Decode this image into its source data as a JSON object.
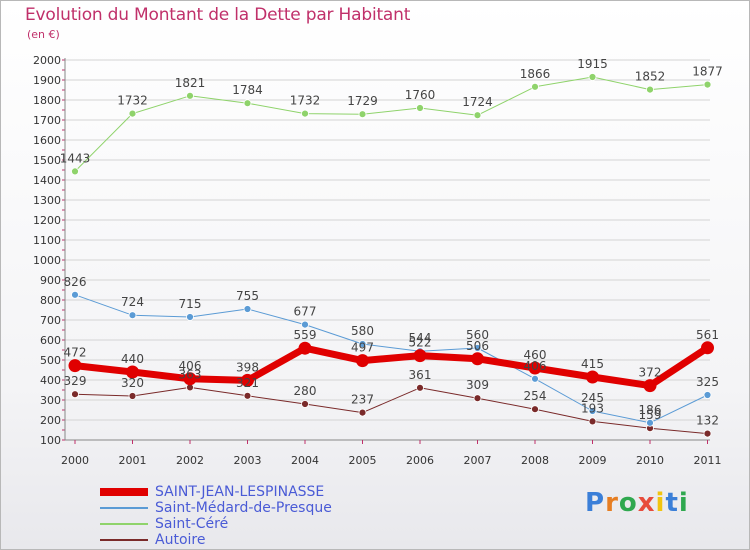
{
  "title": "Evolution du Montant de la Dette par Habitant",
  "subtitle": "(en €)",
  "logo": "Proxiti",
  "chart_data": {
    "type": "line",
    "x": [
      "2000",
      "2001",
      "2002",
      "2003",
      "2004",
      "2005",
      "2006",
      "2007",
      "2008",
      "2009",
      "2010",
      "2011"
    ],
    "ylim": [
      100,
      2000
    ],
    "yticks": [
      100,
      200,
      300,
      400,
      500,
      600,
      700,
      800,
      900,
      1000,
      1100,
      1200,
      1300,
      1400,
      1500,
      1600,
      1700,
      1800,
      1900,
      2000
    ],
    "grid": true,
    "legend_position": "bottom-left",
    "series": [
      {
        "name": "SAINT-JEAN-LESPINASSE",
        "color": "#e00000",
        "width": 7,
        "values": [
          472,
          440,
          406,
          398,
          559,
          497,
          522,
          506,
          460,
          415,
          372,
          561
        ],
        "labels": [
          "472",
          "440",
          "406",
          "398",
          "559",
          "497",
          "522",
          "506",
          "460",
          "415",
          "372",
          "561"
        ]
      },
      {
        "name": "Saint-Médard-de-Presque",
        "color": "#5b9bd5",
        "width": 1,
        "values": [
          826,
          724,
          715,
          755,
          677,
          580,
          544,
          560,
          406,
          245,
          186,
          325
        ],
        "labels": [
          "826",
          "724",
          "715",
          "755",
          "677",
          "580",
          "544",
          "560",
          "406",
          "245",
          "186",
          "325"
        ]
      },
      {
        "name": "Saint-Céré",
        "color": "#8fd36b",
        "width": 1,
        "values": [
          1443,
          1732,
          1821,
          1784,
          1732,
          1729,
          1760,
          1724,
          1866,
          1915,
          1852,
          1877
        ],
        "labels": [
          "1443",
          "1732",
          "1821",
          "1784",
          "1732",
          "1729",
          "1760",
          "1724",
          "1866",
          "1915",
          "1852",
          "1877"
        ]
      },
      {
        "name": "Autoire",
        "color": "#7a2a2a",
        "width": 1,
        "values": [
          329,
          320,
          363,
          321,
          280,
          237,
          361,
          309,
          254,
          193,
          159,
          132
        ],
        "labels": [
          "329",
          "320",
          "363",
          "321",
          "280",
          "237",
          "361",
          "309",
          "254",
          "193",
          "159",
          "132"
        ]
      }
    ]
  }
}
